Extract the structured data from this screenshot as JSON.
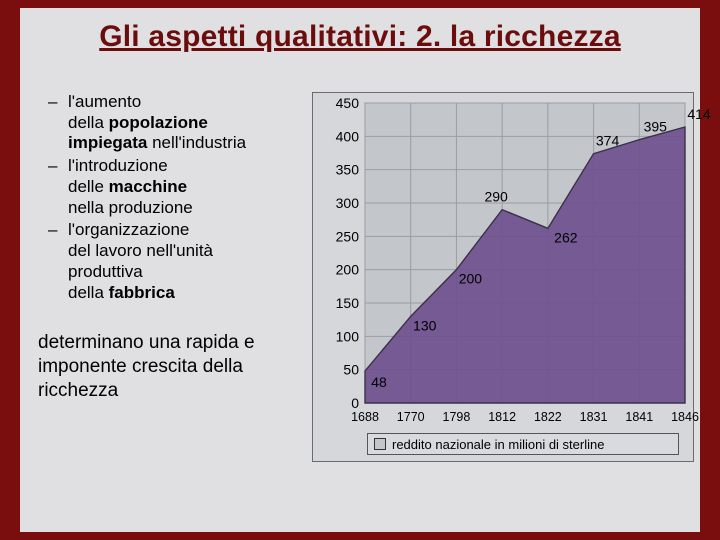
{
  "title": "Gli aspetti qualitativi: 2. la ricchezza",
  "bullets": [
    {
      "pre": "l'aumento della ",
      "bold": "popolazione impiegata",
      "post": " nell'industria"
    },
    {
      "pre": "l'introduzione delle ",
      "bold": "macchine",
      "post": " nella produzione"
    },
    {
      "pre": "l'organizzazione del lavoro nell'unità produttiva della ",
      "bold": "fabbrica",
      "post": ""
    }
  ],
  "paragraph": "determinano una rapida e imponente crescita della ricchezza",
  "chart": {
    "type": "area",
    "background_color": "#c3c7cc",
    "area_fill": "#6f508f",
    "area_stroke": "#3c3148",
    "grid_color": "#9a9ea4",
    "box_bg": "#d5d7db",
    "ylabel_fontsize": 14,
    "xlabel_fontsize": 12.5,
    "value_fontsize": 14,
    "ylim": [
      0,
      450
    ],
    "yticks": [
      0,
      50,
      100,
      150,
      200,
      250,
      300,
      350,
      400,
      450
    ],
    "categories": [
      "1688",
      "1770",
      "1798",
      "1812",
      "1822",
      "1831",
      "1841",
      "1846"
    ],
    "values": [
      48,
      130,
      200,
      290,
      262,
      374,
      395,
      414
    ],
    "legend_label": "reddito nazionale in milioni di sterline",
    "legend_swatch": "#c3c7cc"
  }
}
